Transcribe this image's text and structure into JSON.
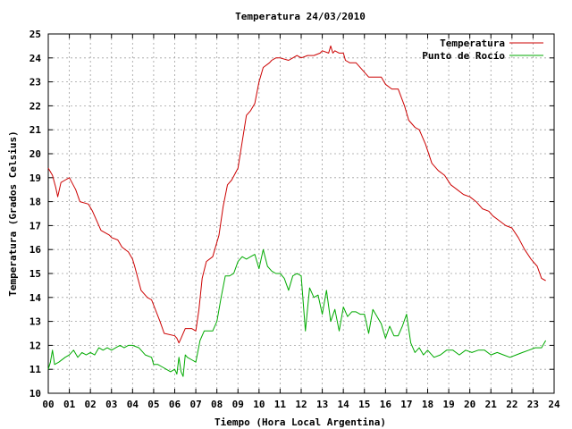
{
  "chart_data": {
    "type": "line",
    "title": "Temperatura 24/03/2010",
    "xlabel": "Tiempo (Hora Local Argentina)",
    "ylabel": "Temperatura (Grados Celsius)",
    "xlim": [
      0,
      24
    ],
    "ylim": [
      10,
      25
    ],
    "grid": true,
    "legend": "top-right",
    "x_ticks": [
      "00",
      "01",
      "02",
      "03",
      "04",
      "05",
      "06",
      "07",
      "08",
      "09",
      "10",
      "11",
      "12",
      "13",
      "14",
      "15",
      "16",
      "17",
      "18",
      "19",
      "20",
      "21",
      "22",
      "23",
      "24"
    ],
    "y_ticks": [
      10,
      11,
      12,
      13,
      14,
      15,
      16,
      17,
      18,
      19,
      20,
      21,
      22,
      23,
      24,
      25
    ],
    "series": [
      {
        "name": "Temperatura",
        "color": "#cc0000",
        "x": [
          0,
          0.2,
          0.35,
          0.45,
          0.6,
          0.8,
          1.0,
          1.3,
          1.5,
          1.9,
          2.1,
          2.5,
          2.9,
          3.0,
          3.3,
          3.5,
          3.8,
          4.0,
          4.1,
          4.4,
          4.7,
          4.9,
          5.3,
          5.5,
          6.0,
          6.1,
          6.2,
          6.3,
          6.5,
          6.8,
          7.0,
          7.15,
          7.3,
          7.5,
          7.8,
          8.1,
          8.3,
          8.5,
          8.7,
          9.0,
          9.2,
          9.4,
          9.6,
          9.8,
          10.0,
          10.2,
          10.5,
          10.6,
          10.8,
          11.0,
          11.4,
          11.6,
          11.8,
          12.0,
          12.3,
          12.6,
          12.9,
          13.0,
          13.3,
          13.4,
          13.5,
          13.6,
          13.8,
          14.0,
          14.1,
          14.3,
          14.6,
          14.9,
          15.2,
          15.5,
          15.8,
          16.0,
          16.3,
          16.6,
          16.9,
          17.1,
          17.4,
          17.6,
          17.9,
          18.2,
          18.5,
          18.8,
          19.1,
          19.4,
          19.7,
          20.0,
          20.3,
          20.6,
          20.9,
          21.1,
          21.4,
          21.7,
          22.0,
          22.3,
          22.6,
          22.9,
          23.2,
          23.4,
          23.6
        ],
        "values": [
          19.4,
          19.1,
          18.6,
          18.2,
          18.8,
          18.9,
          19.0,
          18.5,
          18.0,
          17.9,
          17.6,
          16.8,
          16.6,
          16.5,
          16.4,
          16.1,
          15.9,
          15.6,
          15.3,
          14.3,
          14.0,
          13.9,
          13.0,
          12.5,
          12.4,
          12.3,
          12.1,
          12.3,
          12.7,
          12.7,
          12.6,
          13.5,
          14.8,
          15.5,
          15.7,
          16.6,
          17.8,
          18.7,
          18.9,
          19.4,
          20.5,
          21.6,
          21.8,
          22.1,
          23.0,
          23.6,
          23.8,
          23.9,
          24.0,
          24.0,
          23.9,
          24.0,
          24.1,
          24.0,
          24.1,
          24.1,
          24.2,
          24.3,
          24.2,
          24.5,
          24.2,
          24.3,
          24.2,
          24.2,
          23.9,
          23.8,
          23.8,
          23.5,
          23.2,
          23.2,
          23.2,
          22.9,
          22.7,
          22.7,
          22.0,
          21.4,
          21.1,
          21.0,
          20.4,
          19.6,
          19.3,
          19.1,
          18.7,
          18.5,
          18.3,
          18.2,
          18.0,
          17.7,
          17.6,
          17.4,
          17.2,
          17.0,
          16.9,
          16.5,
          16.0,
          15.6,
          15.3,
          14.8,
          14.7
        ]
      },
      {
        "name": "Punto de Rocío",
        "color": "#00aa00",
        "x": [
          0,
          0.1,
          0.2,
          0.3,
          0.5,
          0.8,
          1.0,
          1.2,
          1.4,
          1.6,
          1.8,
          2.0,
          2.2,
          2.4,
          2.6,
          2.8,
          3.0,
          3.2,
          3.4,
          3.6,
          3.8,
          4.0,
          4.3,
          4.6,
          4.9,
          5.0,
          5.2,
          5.4,
          5.6,
          5.8,
          6.0,
          6.1,
          6.2,
          6.3,
          6.4,
          6.5,
          6.6,
          6.8,
          7.0,
          7.2,
          7.4,
          7.6,
          7.8,
          8.0,
          8.2,
          8.4,
          8.6,
          8.8,
          9.0,
          9.2,
          9.4,
          9.6,
          9.8,
          10.0,
          10.2,
          10.4,
          10.6,
          10.8,
          11.0,
          11.2,
          11.4,
          11.6,
          11.8,
          12.0,
          12.2,
          12.4,
          12.6,
          12.8,
          13.0,
          13.2,
          13.4,
          13.6,
          13.8,
          14.0,
          14.2,
          14.4,
          14.6,
          14.8,
          15.0,
          15.2,
          15.4,
          15.6,
          15.8,
          16.0,
          16.2,
          16.4,
          16.6,
          16.8,
          17.0,
          17.2,
          17.4,
          17.6,
          17.8,
          18.0,
          18.3,
          18.6,
          18.9,
          19.2,
          19.5,
          19.8,
          20.1,
          20.4,
          20.7,
          21.0,
          21.3,
          21.6,
          21.9,
          22.2,
          22.5,
          22.8,
          23.1,
          23.4,
          23.6
        ],
        "values": [
          11.0,
          11.3,
          11.8,
          11.2,
          11.3,
          11.5,
          11.6,
          11.8,
          11.5,
          11.7,
          11.6,
          11.7,
          11.6,
          11.9,
          11.8,
          11.9,
          11.8,
          11.9,
          12.0,
          11.9,
          12.0,
          12.0,
          11.9,
          11.6,
          11.5,
          11.2,
          11.2,
          11.1,
          11.0,
          10.9,
          11.0,
          10.8,
          11.5,
          10.9,
          10.7,
          11.6,
          11.5,
          11.4,
          11.3,
          12.2,
          12.6,
          12.6,
          12.6,
          13.0,
          14.0,
          14.9,
          14.9,
          15.0,
          15.5,
          15.7,
          15.6,
          15.7,
          15.8,
          15.2,
          16.0,
          15.3,
          15.1,
          15.0,
          15.0,
          14.8,
          14.3,
          14.9,
          15.0,
          14.9,
          12.6,
          14.4,
          14.0,
          14.1,
          13.3,
          14.3,
          13.0,
          13.5,
          12.6,
          13.6,
          13.2,
          13.4,
          13.4,
          13.3,
          13.3,
          12.5,
          13.5,
          13.2,
          12.9,
          12.3,
          12.8,
          12.4,
          12.4,
          12.8,
          13.3,
          12.1,
          11.7,
          11.9,
          11.6,
          11.8,
          11.5,
          11.6,
          11.8,
          11.8,
          11.6,
          11.8,
          11.7,
          11.8,
          11.8,
          11.6,
          11.7,
          11.6,
          11.5,
          11.6,
          11.7,
          11.8,
          11.9,
          11.9,
          12.2
        ]
      }
    ]
  }
}
